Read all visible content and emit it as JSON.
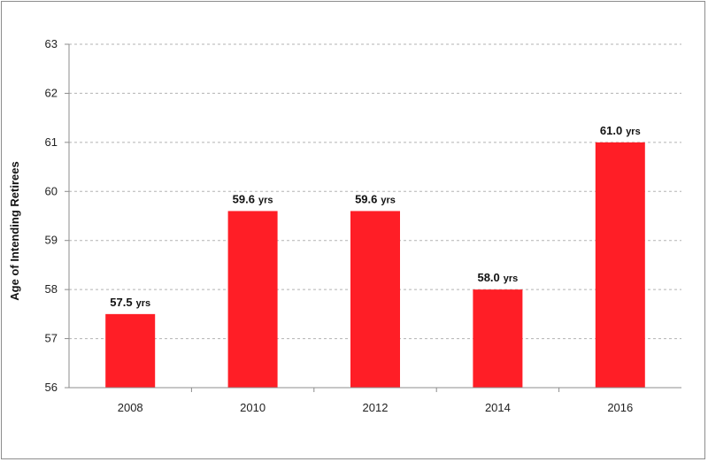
{
  "chart_data": {
    "type": "bar",
    "title": "",
    "xlabel": "",
    "ylabel": "Age of Intending Retirees",
    "categories": [
      "2008",
      "2010",
      "2012",
      "2014",
      "2016"
    ],
    "values": [
      57.5,
      59.6,
      59.6,
      58.0,
      61.0
    ],
    "data_labels": [
      "57.5",
      "59.6",
      "59.6",
      "58.0",
      "61.0"
    ],
    "value_unit": "yrs",
    "ylim": [
      56,
      63
    ],
    "yticks": [
      56,
      57,
      58,
      59,
      60,
      61,
      62,
      63
    ],
    "grid": true,
    "grid_style": "dashed",
    "legend": "none",
    "colors": {
      "bar": "#ff1e26",
      "grid": "#b3b3b3",
      "axis": "#8c8c8c"
    }
  }
}
